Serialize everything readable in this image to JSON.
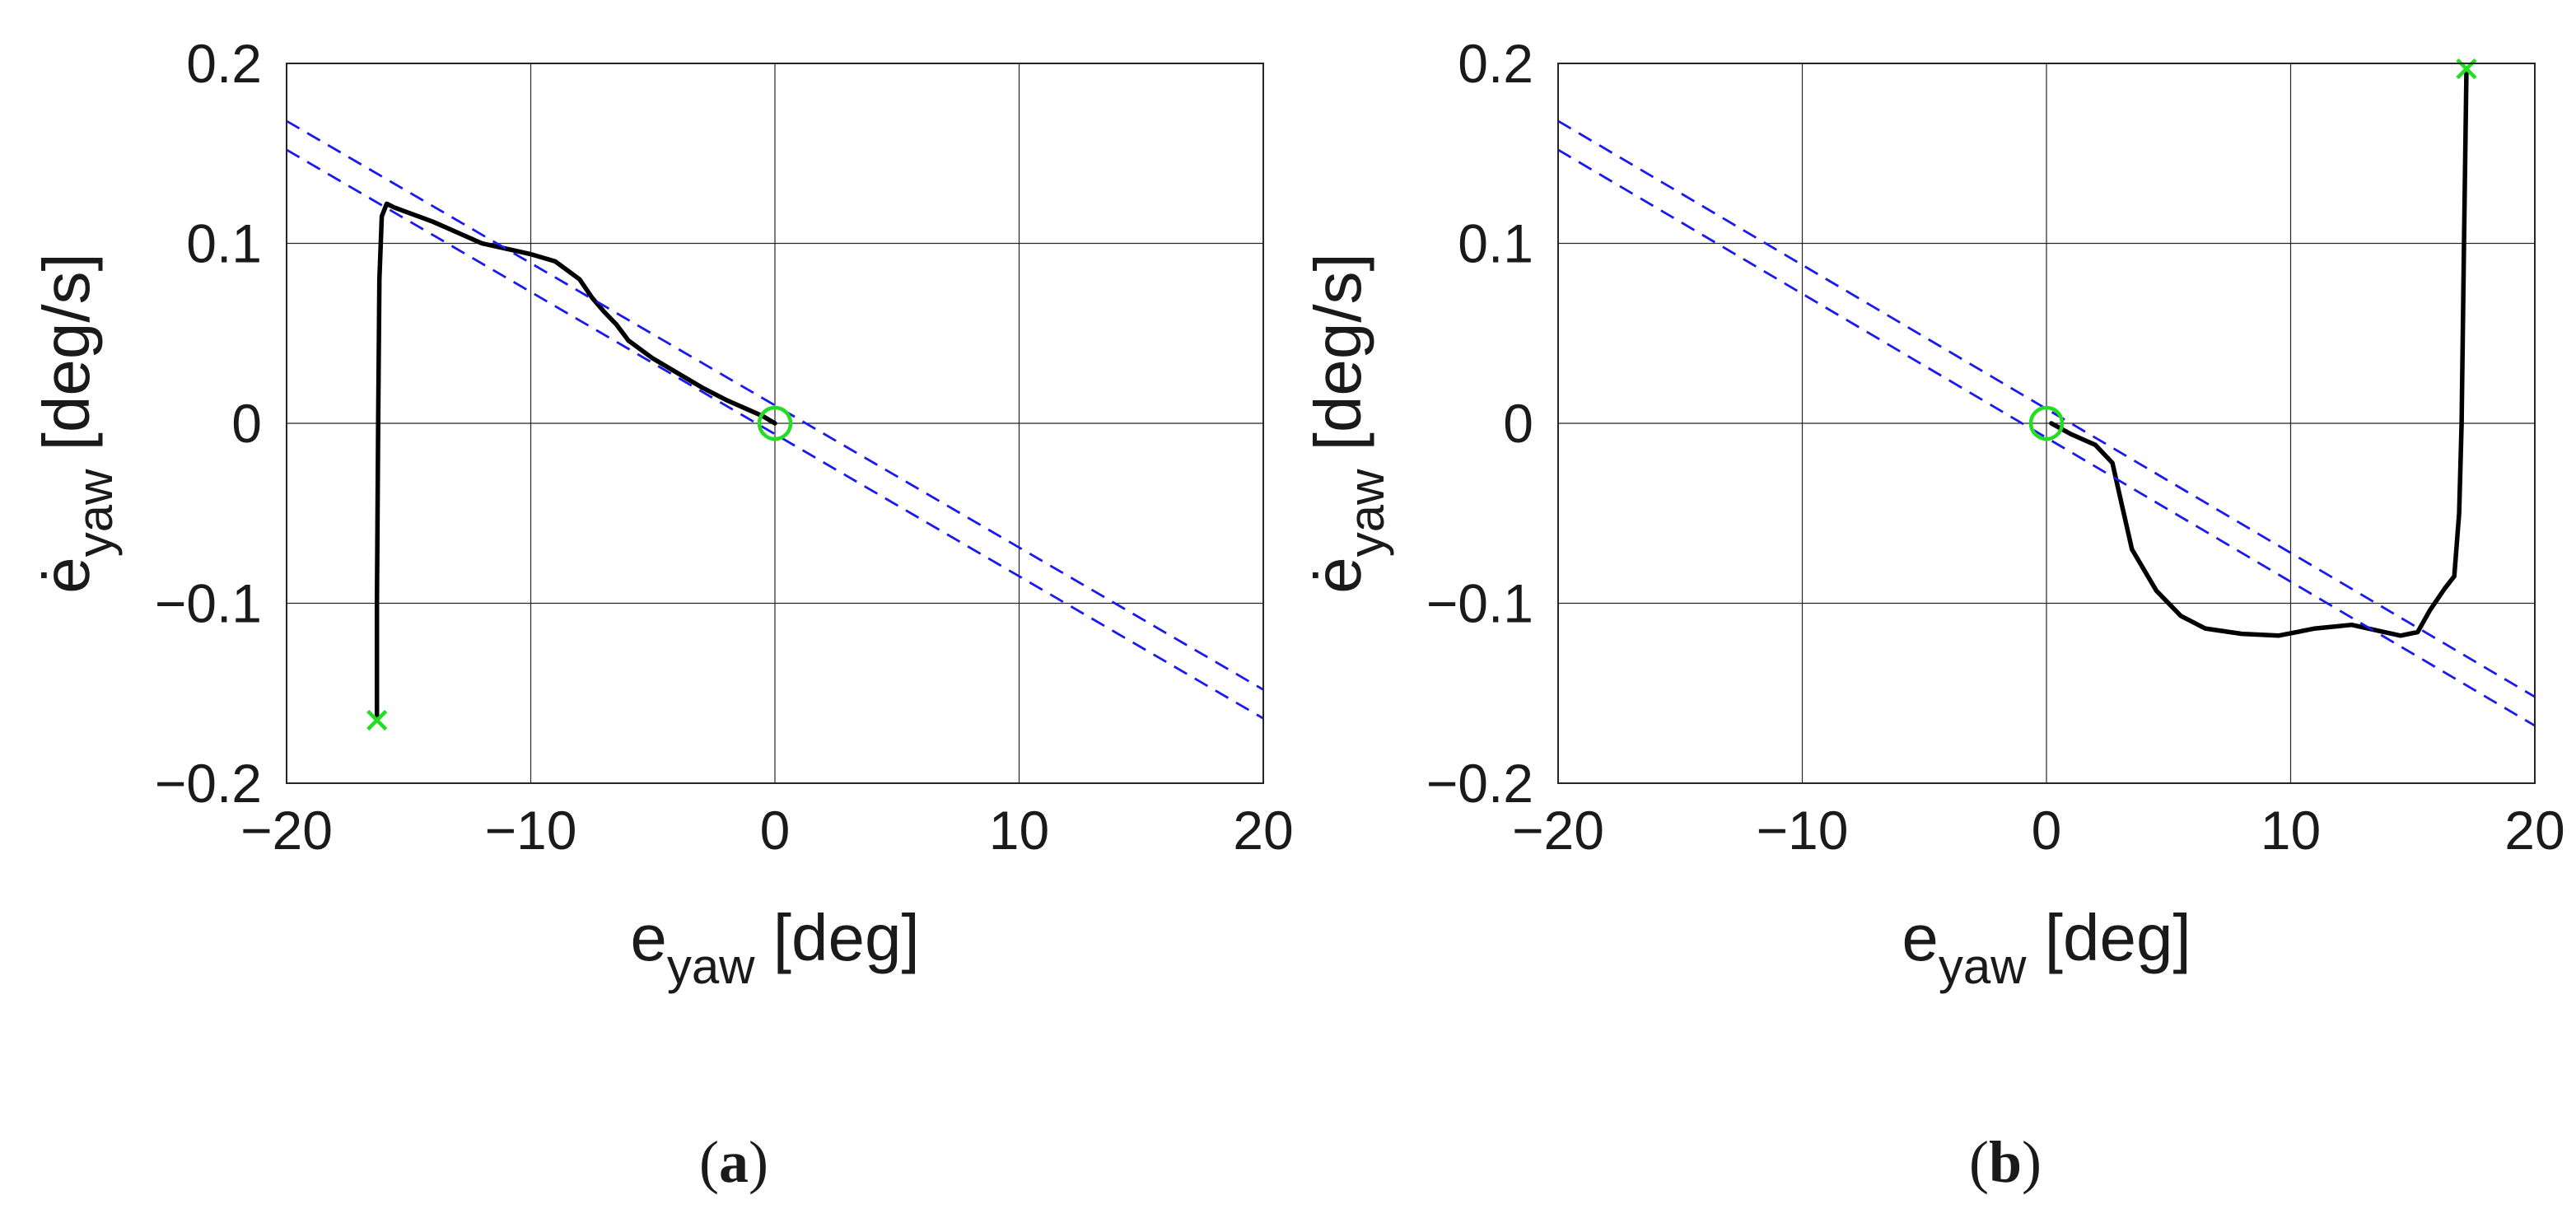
{
  "chart_data": [
    {
      "type": "line",
      "panel_label": "(a)",
      "xlabel": "e_yaw [deg]",
      "ylabel": "ė_yaw [deg/s]",
      "xlim": [
        -20,
        20
      ],
      "ylim": [
        -0.2,
        0.2
      ],
      "xticks": [
        -20,
        -10,
        0,
        10,
        20
      ],
      "yticks": [
        -0.2,
        -0.1,
        0,
        0.1,
        0.2
      ],
      "grid": true,
      "series": [
        {
          "style": "solid-black",
          "x": [
            -16.3,
            -16.3,
            -16.25,
            -16.2,
            -16.1,
            -15.9,
            -15.6,
            -15.0,
            -14.0,
            -13.0,
            -12.0,
            -11.0,
            -10.0,
            -9.0,
            -8.0,
            -7.5,
            -7.0,
            -6.5,
            -6.0,
            -5.0,
            -4.0,
            -3.0,
            -2.0,
            -1.0,
            -0.5,
            0.0
          ],
          "y": [
            -0.165,
            -0.1,
            0.0,
            0.08,
            0.115,
            0.122,
            0.12,
            0.117,
            0.112,
            0.106,
            0.1,
            0.097,
            0.094,
            0.09,
            0.08,
            0.07,
            0.062,
            0.055,
            0.046,
            0.036,
            0.028,
            0.02,
            0.013,
            0.007,
            0.004,
            0.0
          ]
        },
        {
          "style": "dashed-blue",
          "x": [
            -20,
            20
          ],
          "y": [
            0.168,
            -0.148
          ]
        },
        {
          "style": "dashed-blue",
          "x": [
            -20,
            20
          ],
          "y": [
            0.152,
            -0.164
          ]
        }
      ],
      "markers": [
        {
          "shape": "x",
          "color": "#22dd22",
          "x": -16.3,
          "y": -0.165
        },
        {
          "shape": "circle",
          "color": "#22dd22",
          "x": 0.0,
          "y": 0.0
        }
      ]
    },
    {
      "type": "line",
      "panel_label": "(b)",
      "xlabel": "e_yaw [deg]",
      "ylabel": "ė_yaw [deg/s]",
      "xlim": [
        -20,
        20
      ],
      "ylim": [
        -0.2,
        0.2
      ],
      "xticks": [
        -20,
        -10,
        0,
        10,
        20
      ],
      "yticks": [
        -0.2,
        -0.1,
        0,
        0.1,
        0.2
      ],
      "grid": true,
      "series": [
        {
          "style": "solid-black",
          "x": [
            0.2,
            1.0,
            2.0,
            2.7,
            3.0,
            3.5,
            4.5,
            5.5,
            6.5,
            8.0,
            9.5,
            11.0,
            12.5,
            13.5,
            14.5,
            15.2,
            15.7,
            16.3,
            16.7,
            16.9,
            17.0,
            17.1,
            17.2
          ],
          "y": [
            0.0,
            -0.006,
            -0.012,
            -0.022,
            -0.04,
            -0.07,
            -0.093,
            -0.107,
            -0.114,
            -0.117,
            -0.118,
            -0.114,
            -0.112,
            -0.115,
            -0.118,
            -0.116,
            -0.104,
            -0.092,
            -0.085,
            -0.05,
            0.0,
            0.1,
            0.197
          ]
        },
        {
          "style": "dashed-blue",
          "x": [
            -20,
            20
          ],
          "y": [
            0.168,
            -0.152
          ]
        },
        {
          "style": "dashed-blue",
          "x": [
            -20,
            20
          ],
          "y": [
            0.152,
            -0.168
          ]
        }
      ],
      "markers": [
        {
          "shape": "x",
          "color": "#22dd22",
          "x": 17.2,
          "y": 0.197
        },
        {
          "shape": "circle",
          "color": "#22dd22",
          "x": 0.0,
          "y": 0.0
        }
      ]
    }
  ]
}
